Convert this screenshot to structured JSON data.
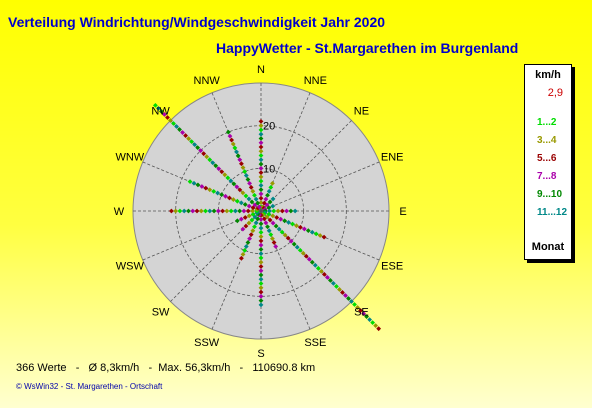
{
  "header": {
    "title": "Verteilung Windrichtung/Windgeschwindigkeit  Jahr 2020",
    "subtitle": "HappyWetter - St.Margarethen im Burgenland"
  },
  "legend": {
    "unit": "km/h",
    "max": "2,9",
    "items": [
      {
        "label": "1...2",
        "color": "#00dd00"
      },
      {
        "label": "3...4",
        "color": "#999900"
      },
      {
        "label": "5...6",
        "color": "#990000"
      },
      {
        "label": "7...8",
        "color": "#aa00aa"
      },
      {
        "label": "9...10",
        "color": "#008800"
      },
      {
        "label": "11...12",
        "color": "#008888"
      }
    ],
    "footer": "Monat"
  },
  "footer": {
    "stats": "366 Werte   -   Ø 8,3km/h   -  Max. 56,3km/h   -   110690.8 km",
    "credit": "© WsWin32  -  St. Margarethen - Ortschaft"
  },
  "chart_data": {
    "type": "scatter",
    "projection": "polar",
    "directions": [
      "N",
      "NNE",
      "NE",
      "ENE",
      "E",
      "ESE",
      "SE",
      "SSE",
      "S",
      "SSW",
      "SW",
      "WSW",
      "W",
      "WNW",
      "NW",
      "NNW"
    ],
    "radial_ticks": [
      10,
      20
    ],
    "radial_max": 30,
    "point_radial_values": {
      "N": [
        1,
        2,
        3,
        4,
        5,
        6,
        7,
        8,
        9,
        10,
        11,
        12,
        13,
        14,
        15,
        16,
        17,
        18,
        19,
        20,
        21
      ],
      "NNE": [
        1,
        2,
        3,
        4,
        5,
        6,
        7
      ],
      "NE": [
        1,
        2,
        3,
        4
      ],
      "ENE": [
        1,
        2,
        3
      ],
      "E": [
        1,
        2,
        3,
        4,
        5,
        6,
        7,
        8
      ],
      "ESE": [
        1,
        2,
        3,
        4,
        5,
        6,
        7,
        8,
        9,
        10,
        11,
        12,
        13,
        14,
        15,
        16
      ],
      "SE": [
        1,
        2,
        3,
        4,
        5,
        6,
        7,
        8,
        9,
        10,
        11,
        12,
        13,
        14,
        15,
        16,
        17,
        18,
        19,
        20,
        21,
        22,
        23,
        24,
        25,
        26,
        27,
        28,
        29,
        30,
        31,
        32,
        33,
        34,
        35,
        36,
        37,
        38,
        39
      ],
      "SSE": [
        1,
        2,
        3,
        4,
        5,
        6,
        7,
        8,
        9
      ],
      "S": [
        1,
        2,
        3,
        4,
        5,
        6,
        7,
        8,
        9,
        10,
        11,
        12,
        13,
        14,
        15,
        16,
        17,
        18,
        19,
        20,
        21,
        22
      ],
      "SSW": [
        1,
        2,
        3,
        4,
        5,
        6,
        7,
        8,
        9,
        10,
        11,
        12
      ],
      "SW": [
        1,
        2,
        3,
        4,
        5,
        6
      ],
      "WSW": [
        1,
        2,
        3,
        4,
        5,
        6
      ],
      "W": [
        1,
        2,
        3,
        4,
        5,
        6,
        7,
        8,
        9,
        10,
        11,
        12,
        13,
        14,
        15,
        16,
        17,
        18,
        19,
        20,
        21
      ],
      "WNW": [
        1,
        2,
        3,
        4,
        5,
        6,
        7,
        8,
        9,
        10,
        11,
        12,
        13,
        14,
        15,
        16,
        17,
        18
      ],
      "NW": [
        1,
        2,
        3,
        4,
        5,
        6,
        7,
        8,
        9,
        10,
        11,
        12,
        13,
        14,
        15,
        16,
        17,
        18,
        19,
        20,
        21,
        22,
        23,
        24,
        25,
        26,
        27,
        28,
        29,
        30,
        31,
        32,
        33,
        34,
        35
      ],
      "NNW": [
        1,
        2,
        3,
        4,
        5,
        6,
        7,
        8,
        9,
        10,
        11,
        12,
        13,
        14,
        15,
        16,
        17,
        18,
        19,
        20
      ]
    }
  }
}
